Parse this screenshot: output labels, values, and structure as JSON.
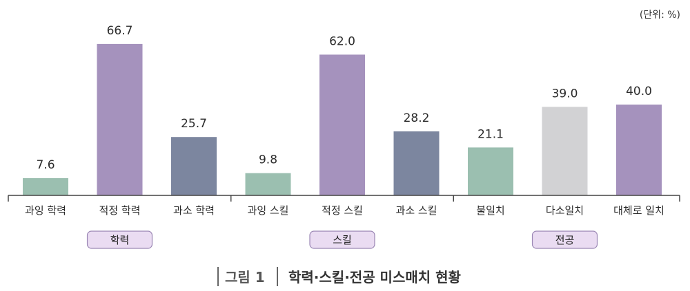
{
  "unit": "(단위: %)",
  "caption": {
    "prefix": "그림 1",
    "title": "학력·스킬·전공 미스매치 현황"
  },
  "colors": {
    "over": "#9bbfb0",
    "match": "#a592bd",
    "under": "#7c869f",
    "partial": "#d2d2d4",
    "axis": "#444444",
    "group_fill": "#eadcf2",
    "group_stroke": "#9a86b4"
  },
  "chart_data": {
    "type": "bar",
    "ylabel": "",
    "unit": "%",
    "ylim": [
      0,
      70
    ],
    "grid": false,
    "legend": "none",
    "groups": [
      {
        "name": "학력",
        "bars": [
          {
            "category": "과잉 학력",
            "value": 7.6,
            "value_label": "7.6",
            "color": "#9bbfb0"
          },
          {
            "category": "적정 학력",
            "value": 66.7,
            "value_label": "66.7",
            "color": "#a592bd"
          },
          {
            "category": "과소 학력",
            "value": 25.7,
            "value_label": "25.7",
            "color": "#7c869f"
          }
        ]
      },
      {
        "name": "스킬",
        "bars": [
          {
            "category": "과잉 스킬",
            "value": 9.8,
            "value_label": "9.8",
            "color": "#9bbfb0"
          },
          {
            "category": "적정 스킬",
            "value": 62.0,
            "value_label": "62.0",
            "color": "#a592bd"
          },
          {
            "category": "과소 스킬",
            "value": 28.2,
            "value_label": "28.2",
            "color": "#7c869f"
          }
        ]
      },
      {
        "name": "전공",
        "bars": [
          {
            "category": "불일치",
            "value": 21.1,
            "value_label": "21.1",
            "color": "#9bbfb0"
          },
          {
            "category": "다소일치",
            "value": 39.0,
            "value_label": "39.0",
            "color": "#d2d2d4"
          },
          {
            "category": "대체로 일치",
            "value": 40.0,
            "value_label": "40.0",
            "color": "#a592bd"
          }
        ]
      }
    ]
  }
}
